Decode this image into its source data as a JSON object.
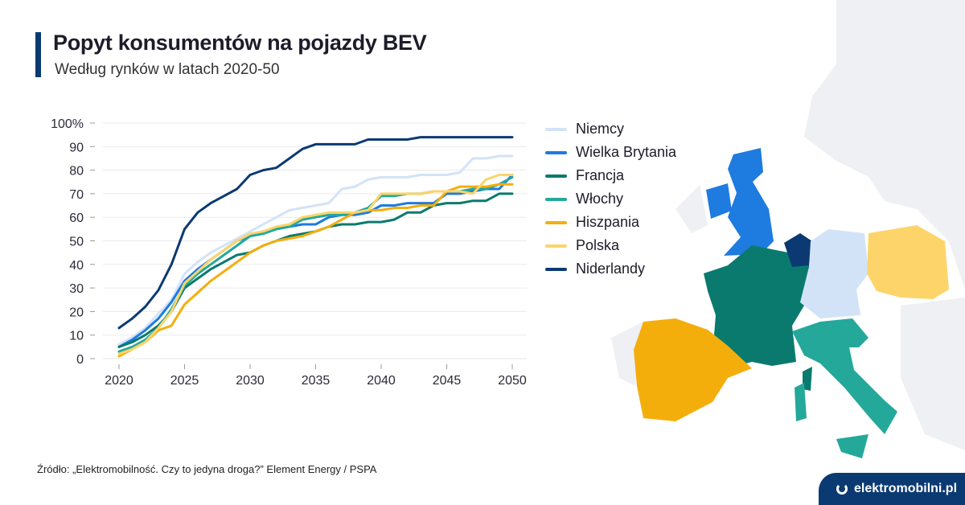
{
  "header": {
    "title": "Popyt konsumentów na pojazdy BEV",
    "subtitle": "Według rynków w latach 2020-50"
  },
  "source": "Źródło: „Elektromobilność. Czy to jedyna droga?” Element Energy / PSPA",
  "brand": {
    "label": "elektromobilni.pl",
    "icon": "power-icon",
    "color": "#0b3a73"
  },
  "chart_data": {
    "type": "line",
    "title": "Popyt konsumentów na pojazdy BEV",
    "subtitle": "Według rynków w latach 2020-50",
    "x": [
      2020,
      2021,
      2022,
      2023,
      2024,
      2025,
      2026,
      2027,
      2028,
      2029,
      2030,
      2031,
      2032,
      2033,
      2034,
      2035,
      2036,
      2037,
      2038,
      2039,
      2040,
      2041,
      2042,
      2043,
      2044,
      2045,
      2046,
      2047,
      2048,
      2049,
      2050
    ],
    "xticks": [
      "2020",
      "2025",
      "2030",
      "2035",
      "2040",
      "2045",
      "2050"
    ],
    "yticks": [
      "0",
      "10",
      "20",
      "30",
      "40",
      "50",
      "60",
      "70",
      "80",
      "90",
      "100%"
    ],
    "ylim": [
      0,
      100
    ],
    "xlim": [
      2020,
      2050
    ],
    "grid": true,
    "legend": "right",
    "series": [
      {
        "name": "Niemcy",
        "color": "#d3e3f7",
        "values": [
          6,
          9,
          13,
          19,
          25,
          36,
          41,
          45,
          48,
          51,
          54,
          57,
          60,
          63,
          64,
          65,
          66,
          72,
          73,
          76,
          77,
          77,
          77,
          78,
          78,
          78,
          79,
          85,
          85,
          86,
          86
        ]
      },
      {
        "name": "Wielka Brytania",
        "color": "#1e7be0",
        "values": [
          5,
          8,
          12,
          17,
          24,
          33,
          38,
          42,
          46,
          50,
          52,
          54,
          55,
          56,
          57,
          57,
          60,
          61,
          61,
          62,
          65,
          65,
          66,
          66,
          66,
          70,
          70,
          71,
          72,
          72,
          78
        ]
      },
      {
        "name": "Francja",
        "color": "#0b7a6e",
        "values": [
          5,
          7,
          10,
          14,
          20,
          30,
          34,
          38,
          41,
          44,
          45,
          48,
          50,
          52,
          53,
          54,
          56,
          57,
          57,
          58,
          58,
          59,
          62,
          62,
          65,
          66,
          66,
          67,
          67,
          70,
          70
        ]
      },
      {
        "name": "Włochy",
        "color": "#24a89a",
        "values": [
          3,
          5,
          8,
          13,
          21,
          31,
          36,
          40,
          44,
          48,
          52,
          53,
          55,
          56,
          59,
          60,
          61,
          61,
          62,
          64,
          69,
          69,
          70,
          70,
          71,
          71,
          71,
          72,
          72,
          74,
          77
        ]
      },
      {
        "name": "Hiszpania",
        "color": "#f4ae0c",
        "values": [
          1,
          4,
          7,
          12,
          14,
          23,
          28,
          33,
          37,
          41,
          45,
          48,
          50,
          51,
          52,
          54,
          56,
          59,
          62,
          63,
          63,
          64,
          64,
          65,
          65,
          71,
          73,
          73,
          73,
          74,
          74
        ]
      },
      {
        "name": "Polska",
        "color": "#fcd46a",
        "values": [
          2,
          4,
          7,
          13,
          20,
          32,
          37,
          42,
          46,
          50,
          53,
          54,
          56,
          57,
          60,
          61,
          62,
          62,
          62,
          63,
          70,
          70,
          70,
          70,
          71,
          71,
          71,
          70,
          76,
          78,
          78
        ]
      },
      {
        "name": "Niderlandy",
        "color": "#0b3a73",
        "values": [
          13,
          17,
          22,
          29,
          40,
          55,
          62,
          66,
          69,
          72,
          78,
          80,
          81,
          85,
          89,
          91,
          91,
          91,
          91,
          93,
          93,
          93,
          93,
          94,
          94,
          94,
          94,
          94,
          94,
          94,
          94
        ]
      }
    ]
  }
}
